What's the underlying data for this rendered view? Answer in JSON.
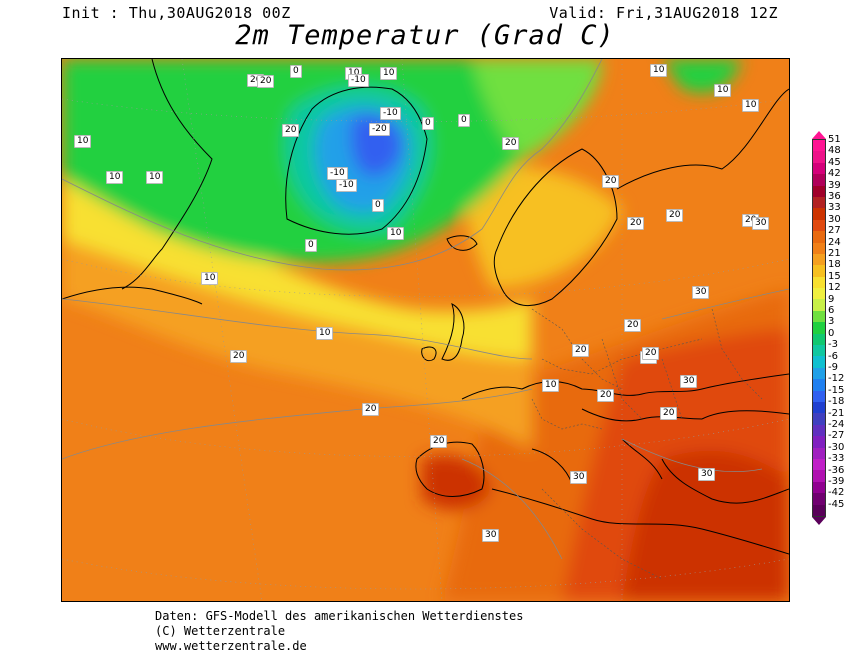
{
  "header": {
    "init": "Init : Thu,30AUG2018 00Z",
    "valid": "Valid: Fri,31AUG2018 12Z",
    "title": "2m Temperatur (Grad C)"
  },
  "map": {
    "contour_labels": [
      {
        "text": "20"
      },
      {
        "text": "20"
      },
      {
        "text": "10"
      },
      {
        "text": "10"
      },
      {
        "text": "0"
      },
      {
        "text": "-10"
      },
      {
        "text": "-10"
      },
      {
        "text": "-20"
      },
      {
        "text": "-10"
      },
      {
        "text": "-10"
      },
      {
        "text": "0"
      },
      {
        "text": "0"
      },
      {
        "text": "0"
      },
      {
        "text": "0"
      },
      {
        "text": "10"
      },
      {
        "text": "10"
      },
      {
        "text": "10"
      },
      {
        "text": "10"
      },
      {
        "text": "10"
      },
      {
        "text": "10"
      },
      {
        "text": "10"
      },
      {
        "text": "10"
      },
      {
        "text": "10"
      },
      {
        "text": "20"
      },
      {
        "text": "20"
      },
      {
        "text": "20"
      },
      {
        "text": "20"
      },
      {
        "text": "20"
      },
      {
        "text": "20"
      },
      {
        "text": "30"
      },
      {
        "text": "30"
      },
      {
        "text": "30"
      },
      {
        "text": "30"
      },
      {
        "text": "30"
      },
      {
        "text": "30"
      },
      {
        "text": "20"
      },
      {
        "text": "20"
      },
      {
        "text": "20"
      },
      {
        "text": "20"
      },
      {
        "text": "20"
      },
      {
        "text": "10"
      },
      {
        "text": "20"
      },
      {
        "text": "20"
      },
      {
        "text": "30"
      },
      {
        "text": "20"
      }
    ]
  },
  "legend": {
    "ticks": [
      "51",
      "48",
      "45",
      "42",
      "39",
      "36",
      "33",
      "30",
      "27",
      "24",
      "21",
      "18",
      "15",
      "12",
      "9",
      "6",
      "3",
      "0",
      "-3",
      "-6",
      "-9",
      "-12",
      "-15",
      "-18",
      "-21",
      "-24",
      "-27",
      "-30",
      "-33",
      "-36",
      "-39",
      "-42",
      "-45"
    ],
    "colors": [
      "#ff1493",
      "#ee1289",
      "#d4007a",
      "#b0005a",
      "#a0002a",
      "#b22222",
      "#cc3300",
      "#e04a10",
      "#e86a10",
      "#f08018",
      "#f5a020",
      "#f7c020",
      "#f8e030",
      "#f0f040",
      "#c8f048",
      "#70e040",
      "#20d040",
      "#10c870",
      "#10c8a0",
      "#10c0d0",
      "#20a0e8",
      "#2080f0",
      "#3060f0",
      "#2040d0",
      "#4040c0",
      "#6030c0",
      "#8020c0",
      "#a020c0",
      "#c020c8",
      "#b010b0",
      "#900090",
      "#700070",
      "#5a005a"
    ]
  },
  "footer": {
    "line1": "Daten: GFS-Modell des amerikanischen Wetterdienstes",
    "line2": "(C) Wetterzentrale",
    "line3": "www.wetterzentrale.de"
  }
}
